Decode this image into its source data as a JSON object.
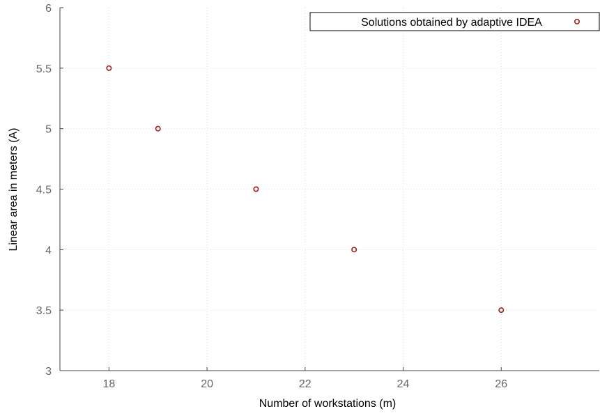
{
  "chart_data": {
    "type": "scatter",
    "title": "",
    "xlabel": "Number of workstations (m)",
    "ylabel": "Linear area in meters (A)",
    "xlim": [
      17,
      28
    ],
    "ylim": [
      3,
      6
    ],
    "xticks": [
      "18",
      "20",
      "22",
      "24",
      "26"
    ],
    "yticks": [
      "3",
      "3.5",
      "4",
      "4.5",
      "5",
      "5.5",
      "6"
    ],
    "grid": true,
    "legend_position": "top-right",
    "series": [
      {
        "name": "Solutions obtained by adaptive IDEA",
        "color": "#a31d1d",
        "marker": "circle",
        "x": [
          18,
          19,
          21,
          23,
          26
        ],
        "y": [
          5.5,
          5.0,
          4.5,
          4.0,
          3.5
        ]
      }
    ]
  }
}
